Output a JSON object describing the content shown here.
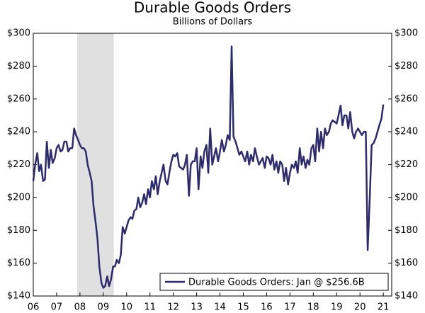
{
  "chart_data": {
    "type": "line",
    "title": "Durable Goods Orders",
    "subtitle": "Billions of Dollars",
    "x": [
      2006,
      2006.08,
      2006.17,
      2006.25,
      2006.33,
      2006.42,
      2006.5,
      2006.58,
      2006.67,
      2006.75,
      2006.83,
      2006.92,
      2007,
      2007.08,
      2007.17,
      2007.25,
      2007.33,
      2007.42,
      2007.5,
      2007.58,
      2007.67,
      2007.75,
      2007.83,
      2007.92,
      2008,
      2008.08,
      2008.17,
      2008.25,
      2008.33,
      2008.42,
      2008.5,
      2008.58,
      2008.67,
      2008.75,
      2008.83,
      2008.92,
      2009,
      2009.08,
      2009.17,
      2009.25,
      2009.33,
      2009.42,
      2009.5,
      2009.58,
      2009.67,
      2009.75,
      2009.83,
      2009.92,
      2010,
      2010.08,
      2010.17,
      2010.25,
      2010.33,
      2010.42,
      2010.5,
      2010.58,
      2010.67,
      2010.75,
      2010.83,
      2010.92,
      2011,
      2011.08,
      2011.17,
      2011.25,
      2011.33,
      2011.42,
      2011.5,
      2011.58,
      2011.67,
      2011.75,
      2011.83,
      2011.92,
      2012,
      2012.08,
      2012.17,
      2012.25,
      2012.33,
      2012.42,
      2012.5,
      2012.58,
      2012.67,
      2012.75,
      2012.83,
      2012.92,
      2013,
      2013.08,
      2013.17,
      2013.25,
      2013.33,
      2013.42,
      2013.5,
      2013.58,
      2013.67,
      2013.75,
      2013.83,
      2013.92,
      2014,
      2014.08,
      2014.17,
      2014.25,
      2014.33,
      2014.42,
      2014.5,
      2014.58,
      2014.67,
      2014.75,
      2014.83,
      2014.92,
      2015,
      2015.08,
      2015.17,
      2015.25,
      2015.33,
      2015.42,
      2015.5,
      2015.58,
      2015.67,
      2015.75,
      2015.83,
      2015.92,
      2016,
      2016.08,
      2016.17,
      2016.25,
      2016.33,
      2016.42,
      2016.5,
      2016.58,
      2016.67,
      2016.75,
      2016.83,
      2016.92,
      2017,
      2017.08,
      2017.17,
      2017.25,
      2017.33,
      2017.42,
      2017.5,
      2017.58,
      2017.67,
      2017.75,
      2017.83,
      2017.92,
      2018,
      2018.08,
      2018.17,
      2018.25,
      2018.33,
      2018.42,
      2018.5,
      2018.58,
      2018.67,
      2018.75,
      2018.83,
      2018.92,
      2019,
      2019.08,
      2019.17,
      2019.25,
      2019.33,
      2019.42,
      2019.5,
      2019.58,
      2019.67,
      2019.75,
      2019.83,
      2019.92,
      2020,
      2020.08,
      2020.17,
      2020.25,
      2020.33,
      2020.42,
      2020.5,
      2020.58,
      2020.67,
      2020.75,
      2020.83,
      2020.92,
      2021
    ],
    "series": [
      {
        "name": "Durable Goods Orders: Jan @ $256.6B",
        "color": "#2e2a6e",
        "values": [
          210,
          220,
          227,
          216,
          220,
          210,
          211,
          234,
          218,
          229,
          221,
          224,
          230,
          232,
          228,
          229,
          234,
          234,
          228,
          230,
          230,
          242,
          238,
          235,
          232,
          230,
          230,
          228,
          220,
          215,
          210,
          195,
          185,
          175,
          158,
          148,
          145,
          146,
          152,
          146,
          150,
          158,
          158,
          162,
          160,
          165,
          182,
          178,
          182,
          186,
          188,
          187,
          192,
          193,
          200,
          194,
          197,
          202,
          196,
          205,
          200,
          210,
          205,
          213,
          202,
          210,
          215,
          220,
          210,
          208,
          215,
          222,
          226,
          225,
          227,
          219,
          218,
          217,
          220,
          226,
          201,
          220,
          222,
          222,
          230,
          205,
          225,
          218,
          228,
          232,
          215,
          242,
          220,
          225,
          230,
          222,
          228,
          235,
          228,
          232,
          238,
          235,
          292,
          237,
          234,
          230,
          226,
          228,
          225,
          222,
          228,
          220,
          226,
          222,
          230,
          225,
          220,
          222,
          224,
          218,
          225,
          224,
          220,
          226,
          217,
          222,
          215,
          222,
          220,
          210,
          218,
          208,
          215,
          220,
          218,
          222,
          215,
          230,
          220,
          225,
          218,
          223,
          220,
          230,
          232,
          222,
          242,
          228,
          240,
          230,
          242,
          238,
          240,
          245,
          247,
          246,
          245,
          250,
          256,
          244,
          250,
          250,
          242,
          252,
          240,
          236,
          240,
          242,
          240,
          238,
          240,
          240,
          168,
          200,
          232,
          233,
          236,
          240,
          244,
          248,
          256.6
        ]
      }
    ],
    "xlim": [
      2006,
      2021.36
    ],
    "xticks": [
      {
        "value": 2006,
        "label": "06"
      },
      {
        "value": 2007,
        "label": "07"
      },
      {
        "value": 2008,
        "label": "08"
      },
      {
        "value": 2009,
        "label": "09"
      },
      {
        "value": 2010,
        "label": "10"
      },
      {
        "value": 2011,
        "label": "11"
      },
      {
        "value": 2012,
        "label": "12"
      },
      {
        "value": 2013,
        "label": "13"
      },
      {
        "value": 2014,
        "label": "14"
      },
      {
        "value": 2015,
        "label": "15"
      },
      {
        "value": 2016,
        "label": "16"
      },
      {
        "value": 2017,
        "label": "17"
      },
      {
        "value": 2018,
        "label": "18"
      },
      {
        "value": 2019,
        "label": "19"
      },
      {
        "value": 2020,
        "label": "20"
      },
      {
        "value": 2021,
        "label": "21"
      }
    ],
    "ylim": [
      140,
      300
    ],
    "yticks": [
      {
        "value": 140,
        "label": "$140"
      },
      {
        "value": 160,
        "label": "$160"
      },
      {
        "value": 180,
        "label": "$180"
      },
      {
        "value": 200,
        "label": "$200"
      },
      {
        "value": 220,
        "label": "$220"
      },
      {
        "value": 240,
        "label": "$240"
      },
      {
        "value": 260,
        "label": "$260"
      },
      {
        "value": 280,
        "label": "$280"
      },
      {
        "value": 300,
        "label": "$300"
      }
    ],
    "shaded_region": [
      2007.88,
      2009.45
    ],
    "shade_color": "#e0e0e0",
    "legend": "lower right"
  }
}
